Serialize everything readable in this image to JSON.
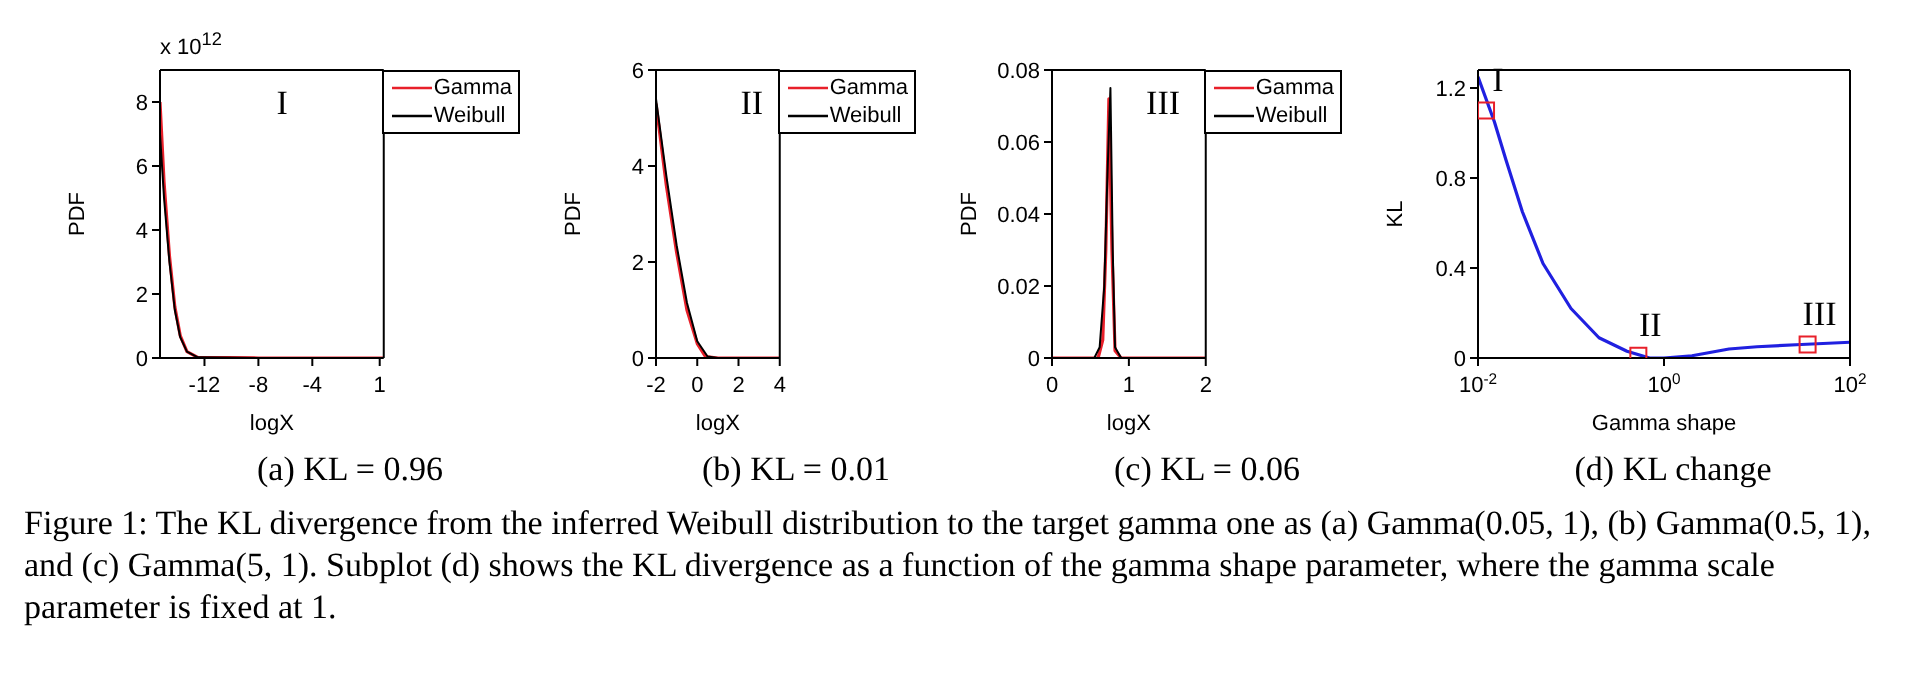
{
  "chart_data": [
    {
      "type": "line",
      "subtitle": "(a) KL = 0.96",
      "xlabel": "logX",
      "ylabel": "PDF",
      "xlim": [
        -15.3,
        1.3
      ],
      "xticks": [
        -12,
        -8,
        -4,
        1
      ],
      "ylim": [
        0,
        9
      ],
      "yticks": [
        0,
        2,
        4,
        6,
        8
      ],
      "legend": "top right",
      "annotations": [
        "I",
        "x 10$^{12}$",
        "Figure 1: The KL divergence from the inferred Weibull distribution to the target gamma one as (a) Gamma(0.05, 1), (b) Gamma(0.5, 1), and (c) Gamma(5, 1). Subplot (d) shows the KL divergence as a function of the gamma shape parameter, where the gamma scale parameter is fixed at 1."
      ],
      "series": [
        {
          "name": "Gamma",
          "color": "#e8202a",
          "x": [
            -15.3,
            -15.0,
            -14.6,
            -14.2,
            -13.8,
            -13.3,
            -12.5,
            -8,
            1.3
          ],
          "values": [
            8.0,
            5.5,
            3.2,
            1.6,
            0.7,
            0.2,
            0.02,
            0,
            0
          ]
        },
        {
          "name": "Weibull",
          "color": "#000000",
          "x": [
            -15.3,
            -15.0,
            -14.6,
            -14.2,
            -13.8,
            -13.3,
            -12.5,
            -8,
            1.3
          ],
          "values": [
            7.0,
            5.0,
            3.0,
            1.5,
            0.65,
            0.2,
            0.02,
            0,
            0
          ]
        }
      ]
    },
    {
      "type": "line",
      "subtitle": "(b) KL = 0.01",
      "xlabel": "logX",
      "ylabel": "PDF",
      "xlim": [
        -2,
        4
      ],
      "xticks": [
        -2,
        0,
        2,
        4
      ],
      "ylim": [
        0,
        6
      ],
      "yticks": [
        0,
        2,
        4,
        6
      ],
      "legend": "top right",
      "annotations": [
        "II"
      ],
      "series": [
        {
          "name": "Gamma",
          "color": "#e8202a",
          "x": [
            -2,
            -1.5,
            -1,
            -0.5,
            0,
            0.4,
            1,
            4
          ],
          "values": [
            5.3,
            3.6,
            2.2,
            1.0,
            0.3,
            0.03,
            0,
            0
          ]
        },
        {
          "name": "Weibull",
          "color": "#000000",
          "x": [
            -2,
            -1.5,
            -1,
            -0.5,
            0,
            0.5,
            1,
            4
          ],
          "values": [
            5.4,
            3.8,
            2.35,
            1.15,
            0.35,
            0.03,
            0,
            0
          ]
        }
      ]
    },
    {
      "type": "line",
      "subtitle": "(c) KL = 0.06",
      "xlabel": "logX",
      "ylabel": "PDF",
      "xlim": [
        0,
        2
      ],
      "xticks": [
        0,
        1,
        2
      ],
      "ylim": [
        0,
        0.08
      ],
      "yticks": [
        0,
        0.02,
        0.04,
        0.06,
        0.08
      ],
      "legend": "top right",
      "annotations": [
        "III"
      ],
      "series": [
        {
          "name": "Gamma",
          "color": "#e8202a",
          "x": [
            0,
            0.6,
            0.66,
            0.7,
            0.74,
            0.78,
            0.82,
            0.9,
            2
          ],
          "values": [
            0,
            0,
            0.005,
            0.03,
            0.072,
            0.03,
            0.002,
            0,
            0
          ]
        },
        {
          "name": "Weibull",
          "color": "#000000",
          "x": [
            0,
            0.55,
            0.62,
            0.68,
            0.72,
            0.76,
            0.79,
            0.82,
            0.9,
            2
          ],
          "values": [
            0,
            0,
            0.003,
            0.02,
            0.05,
            0.075,
            0.03,
            0.003,
            0,
            0
          ]
        }
      ]
    },
    {
      "type": "line",
      "subtitle": "(d) KL change",
      "xlabel": "Gamma shape",
      "ylabel": "KL",
      "log": "x",
      "xlim": [
        0.01,
        100
      ],
      "xticks": [
        {
          "value": 0.01,
          "label": "10$^{-2}$"
        },
        {
          "value": 1,
          "label": "10$^{0}$"
        },
        {
          "value": 100,
          "label": "10$^{2}$"
        }
      ],
      "ylim": [
        0,
        1.28
      ],
      "yticks": [
        0,
        0.4,
        0.8,
        1.2
      ],
      "annotations": [
        {
          "text": "I",
          "x": 0.0122,
          "y": 1.1
        },
        {
          "text": "II",
          "x": 0.53,
          "y": 0.01
        },
        {
          "text": "III",
          "x": 35,
          "y": 0.06
        }
      ],
      "series": [
        {
          "color": "#2020e0",
          "x": [
            0.01,
            0.015,
            0.02,
            0.03,
            0.05,
            0.1,
            0.2,
            0.4,
            0.7,
            1,
            2,
            5,
            10,
            30,
            100
          ],
          "values": [
            1.25,
            1.05,
            0.88,
            0.65,
            0.42,
            0.22,
            0.09,
            0.03,
            0,
            0,
            0.01,
            0.04,
            0.05,
            0.06,
            0.07
          ]
        },
        {
          "type": "scatter",
          "marker": "square",
          "color": "#e8202a",
          "x": [
            0.0122,
            0.53,
            35
          ],
          "values": [
            1.1,
            0.01,
            0.06
          ]
        }
      ]
    }
  ]
}
